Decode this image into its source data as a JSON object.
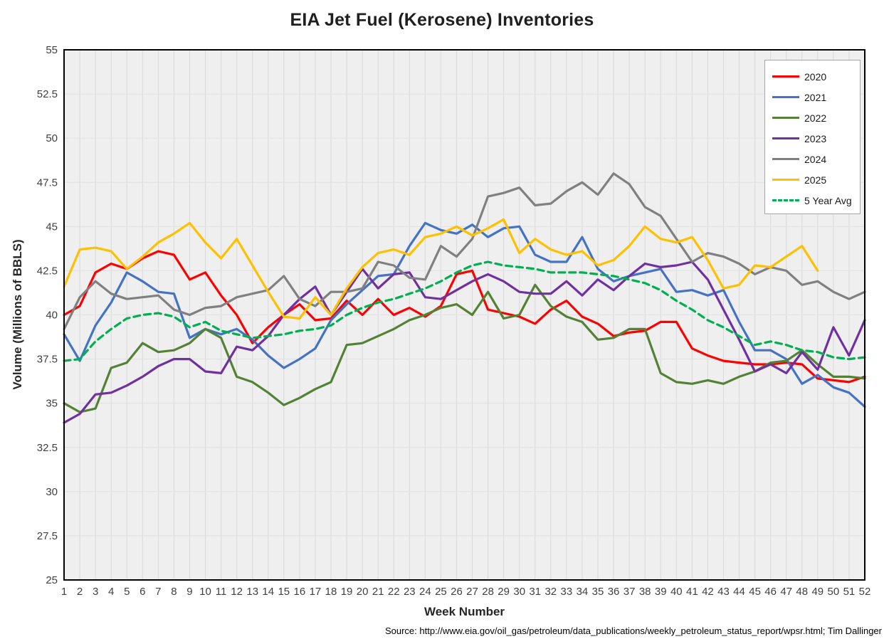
{
  "chart_data": {
    "type": "line",
    "title": "EIA Jet Fuel (Kerosene) Inventories",
    "xlabel": "Week Number",
    "ylabel": "Volume (Millions of BBLS)",
    "source_note": "Source: http://www.eia.gov/oil_gas/petroleum/data_publications/weekly_petroleum_status_report/wpsr.html; Tim Dallinger",
    "x": [
      1,
      2,
      3,
      4,
      5,
      6,
      7,
      8,
      9,
      10,
      11,
      12,
      13,
      14,
      15,
      16,
      17,
      18,
      19,
      20,
      21,
      22,
      23,
      24,
      25,
      26,
      27,
      28,
      29,
      30,
      31,
      32,
      33,
      34,
      35,
      36,
      37,
      38,
      39,
      40,
      41,
      42,
      43,
      44,
      45,
      46,
      47,
      48,
      49,
      50,
      51,
      52
    ],
    "y_ticks": [
      "25",
      "27.5",
      "30",
      "32.5",
      "35",
      "37.5",
      "40",
      "42.5",
      "45",
      "47.5",
      "50",
      "52.5",
      "55"
    ],
    "ylim": [
      25,
      55
    ],
    "grid": true,
    "legend_position": "top-right",
    "plot_bg": "#efefef",
    "grid_color": "#d9d9d9",
    "border_color": "#000000",
    "tick_color": "#404040",
    "series": [
      {
        "name": "2020",
        "color": "#FF0000",
        "dash": "solid",
        "values": [
          40.0,
          40.5,
          42.4,
          42.9,
          42.6,
          43.2,
          43.6,
          43.4,
          42.0,
          42.4,
          41.1,
          40.0,
          38.4,
          39.3,
          40.0,
          40.6,
          39.7,
          39.8,
          40.8,
          40.0,
          40.9,
          40.0,
          40.4,
          39.9,
          40.5,
          42.3,
          42.5,
          40.3,
          40.1,
          39.9,
          39.5,
          40.3,
          40.8,
          39.9,
          39.5,
          38.8,
          39.0,
          39.1,
          39.6,
          39.6,
          38.1,
          37.7,
          37.4,
          37.3,
          37.2,
          37.2,
          37.3,
          37.2,
          36.4,
          36.3,
          36.2,
          36.5
        ]
      },
      {
        "name": "2021",
        "color": "#4472C4",
        "dash": "solid",
        "values": [
          38.9,
          37.4,
          39.4,
          40.7,
          42.4,
          41.9,
          41.3,
          41.2,
          38.7,
          39.2,
          38.9,
          39.2,
          38.6,
          37.7,
          37.0,
          37.5,
          38.1,
          39.7,
          40.6,
          41.4,
          42.2,
          42.3,
          43.9,
          45.2,
          44.8,
          44.6,
          45.1,
          44.4,
          44.9,
          45.0,
          43.4,
          43.0,
          43.0,
          44.4,
          42.6,
          41.9,
          42.2,
          42.4,
          42.6,
          41.3,
          41.4,
          41.1,
          41.4,
          39.6,
          38.0,
          38.0,
          37.5,
          36.1,
          36.6,
          35.9,
          35.6,
          34.8
        ]
      },
      {
        "name": "2022",
        "color": "#548235",
        "dash": "solid",
        "values": [
          35.0,
          34.5,
          34.7,
          37.0,
          37.3,
          38.4,
          37.9,
          38.0,
          38.4,
          39.2,
          38.7,
          36.5,
          36.2,
          35.6,
          34.9,
          35.3,
          35.8,
          36.2,
          38.3,
          38.4,
          38.8,
          39.2,
          39.7,
          40.0,
          40.4,
          40.6,
          40.0,
          41.3,
          39.8,
          40.0,
          41.7,
          40.5,
          39.9,
          39.6,
          38.6,
          38.7,
          39.2,
          39.2,
          36.7,
          36.2,
          36.1,
          36.3,
          36.1,
          36.5,
          36.8,
          37.3,
          37.4,
          38.0,
          37.2,
          36.5,
          36.5,
          36.4
        ]
      },
      {
        "name": "2023",
        "color": "#7030A0",
        "dash": "solid",
        "values": [
          33.9,
          34.4,
          35.5,
          35.6,
          36.0,
          36.5,
          37.1,
          37.5,
          37.5,
          36.8,
          36.7,
          38.2,
          38.0,
          38.8,
          40.0,
          40.9,
          41.6,
          40.0,
          41.3,
          42.6,
          41.5,
          42.3,
          42.4,
          41.0,
          40.9,
          41.4,
          41.9,
          42.3,
          41.9,
          41.3,
          41.2,
          41.2,
          41.9,
          41.1,
          42.0,
          41.4,
          42.2,
          42.9,
          42.7,
          42.8,
          43.0,
          42.0,
          40.3,
          38.6,
          36.8,
          37.2,
          36.7,
          37.9,
          36.9,
          39.3,
          37.7,
          39.7
        ]
      },
      {
        "name": "2024",
        "color": "#808080",
        "dash": "solid",
        "values": [
          39.2,
          41.0,
          41.9,
          41.2,
          40.9,
          41.0,
          41.1,
          40.3,
          40.0,
          40.4,
          40.5,
          41.0,
          41.2,
          41.4,
          42.2,
          40.9,
          40.5,
          41.3,
          41.3,
          41.5,
          43.0,
          42.8,
          42.1,
          42.0,
          43.9,
          43.3,
          44.3,
          46.7,
          46.9,
          47.2,
          46.2,
          46.3,
          47.0,
          47.5,
          46.8,
          48.0,
          47.4,
          46.1,
          45.6,
          44.3,
          43.0,
          43.5,
          43.3,
          42.9,
          42.3,
          42.7,
          42.5,
          41.7,
          41.9,
          41.3,
          40.9,
          41.3
        ]
      },
      {
        "name": "2025",
        "color": "#FFC000",
        "dash": "solid",
        "values": [
          41.6,
          43.7,
          43.8,
          43.6,
          42.6,
          43.3,
          44.1,
          44.6,
          45.2,
          44.1,
          43.2,
          44.3,
          42.8,
          41.3,
          39.9,
          39.8,
          41.0,
          40.0,
          41.5,
          42.7,
          43.5,
          43.7,
          43.4,
          44.4,
          44.6,
          45.0,
          44.5,
          44.9,
          45.4,
          43.5,
          44.3,
          43.7,
          43.4,
          43.6,
          42.8,
          43.1,
          43.9,
          45.0,
          44.3,
          44.1,
          44.4,
          43.1,
          41.5,
          41.7,
          42.8,
          42.7,
          43.3,
          43.9,
          42.5
        ]
      },
      {
        "name": "5 Year Avg",
        "color": "#00B050",
        "dash": "dashed",
        "values": [
          37.4,
          37.5,
          38.5,
          39.2,
          39.8,
          40.0,
          40.1,
          39.9,
          39.3,
          39.6,
          39.1,
          38.9,
          38.7,
          38.8,
          38.9,
          39.1,
          39.2,
          39.4,
          40.0,
          40.4,
          40.7,
          40.9,
          41.2,
          41.5,
          41.9,
          42.4,
          42.8,
          43.0,
          42.8,
          42.7,
          42.6,
          42.4,
          42.4,
          42.4,
          42.3,
          42.2,
          42.0,
          41.8,
          41.4,
          40.8,
          40.3,
          39.7,
          39.3,
          38.8,
          38.3,
          38.5,
          38.3,
          38.0,
          37.9,
          37.6,
          37.5,
          37.6
        ]
      }
    ]
  }
}
